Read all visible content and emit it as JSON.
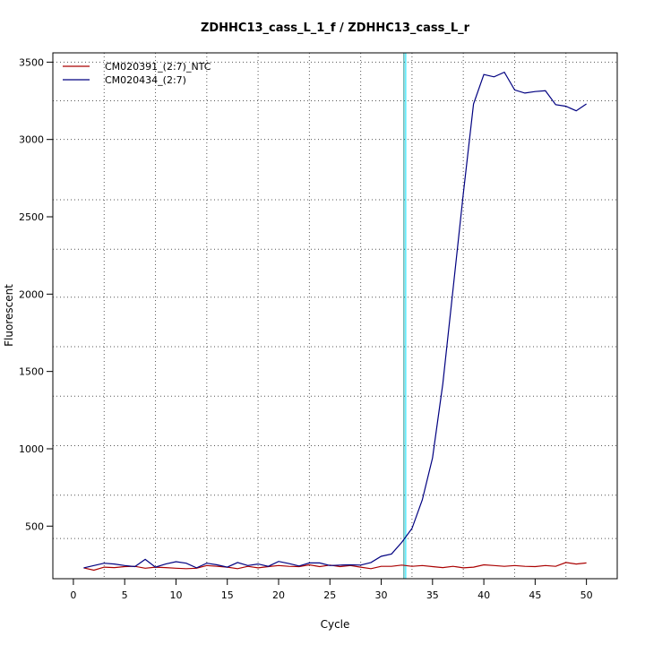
{
  "chart_data": {
    "type": "line",
    "title": "ZDHHC13_cass_L_1_f / ZDHHC13_cass_L_r",
    "xlabel": "Cycle",
    "ylabel": "Fluorescent",
    "xlim": [
      -2,
      53
    ],
    "ylim": [
      160,
      3560
    ],
    "xticks": [
      0,
      5,
      10,
      15,
      20,
      25,
      30,
      35,
      40,
      45,
      50
    ],
    "yticks": [
      500,
      1000,
      1500,
      2000,
      2500,
      3000,
      3500
    ],
    "xgrid": [
      3,
      8,
      13,
      18,
      23,
      28,
      33,
      38,
      43,
      48
    ],
    "ygrid": [
      3500,
      3250,
      3000,
      2610,
      2290,
      1980,
      1660,
      1340,
      1020,
      700,
      420
    ],
    "grid": true,
    "legend_position": "top-left",
    "threshold": {
      "cycle": 32.3,
      "colors": [
        "#1a9090",
        "#00e5ff"
      ]
    },
    "series": [
      {
        "name": "CM020391_(2:7)_NTC",
        "color": "#aa0000",
        "x": [
          1,
          2,
          3,
          4,
          5,
          6,
          7,
          8,
          9,
          10,
          11,
          12,
          13,
          14,
          15,
          16,
          17,
          18,
          19,
          20,
          21,
          22,
          23,
          24,
          25,
          26,
          27,
          28,
          29,
          30,
          31,
          32,
          33,
          34,
          35,
          36,
          37,
          38,
          39,
          40,
          41,
          42,
          43,
          44,
          45,
          46,
          47,
          48,
          49,
          50
        ],
        "values": [
          230,
          215,
          235,
          232,
          238,
          240,
          228,
          235,
          232,
          228,
          225,
          228,
          245,
          240,
          235,
          225,
          240,
          230,
          238,
          245,
          240,
          238,
          250,
          238,
          248,
          238,
          245,
          235,
          225,
          240,
          240,
          248,
          240,
          245,
          238,
          232,
          240,
          230,
          235,
          250,
          245,
          240,
          245,
          240,
          238,
          245,
          240,
          265,
          255,
          262
        ]
      },
      {
        "name": "CM020434_(2:7)",
        "color": "#000080",
        "x": [
          1,
          2,
          3,
          4,
          5,
          6,
          7,
          8,
          9,
          10,
          11,
          12,
          13,
          14,
          15,
          16,
          17,
          18,
          19,
          20,
          21,
          22,
          23,
          24,
          25,
          26,
          27,
          28,
          29,
          30,
          31,
          32,
          33,
          34,
          35,
          36,
          37,
          38,
          39,
          40,
          41,
          42,
          43,
          44,
          45,
          46,
          47,
          48,
          49,
          50
        ],
        "values": [
          230,
          245,
          260,
          255,
          245,
          238,
          285,
          235,
          255,
          270,
          260,
          230,
          260,
          250,
          235,
          265,
          245,
          255,
          240,
          272,
          258,
          242,
          262,
          262,
          245,
          248,
          250,
          248,
          265,
          305,
          320,
          395,
          485,
          670,
          940,
          1420,
          2030,
          2650,
          3230,
          3420,
          3405,
          3435,
          3320,
          3300,
          3310,
          3315,
          3225,
          3215,
          3185,
          3230
        ]
      }
    ]
  }
}
